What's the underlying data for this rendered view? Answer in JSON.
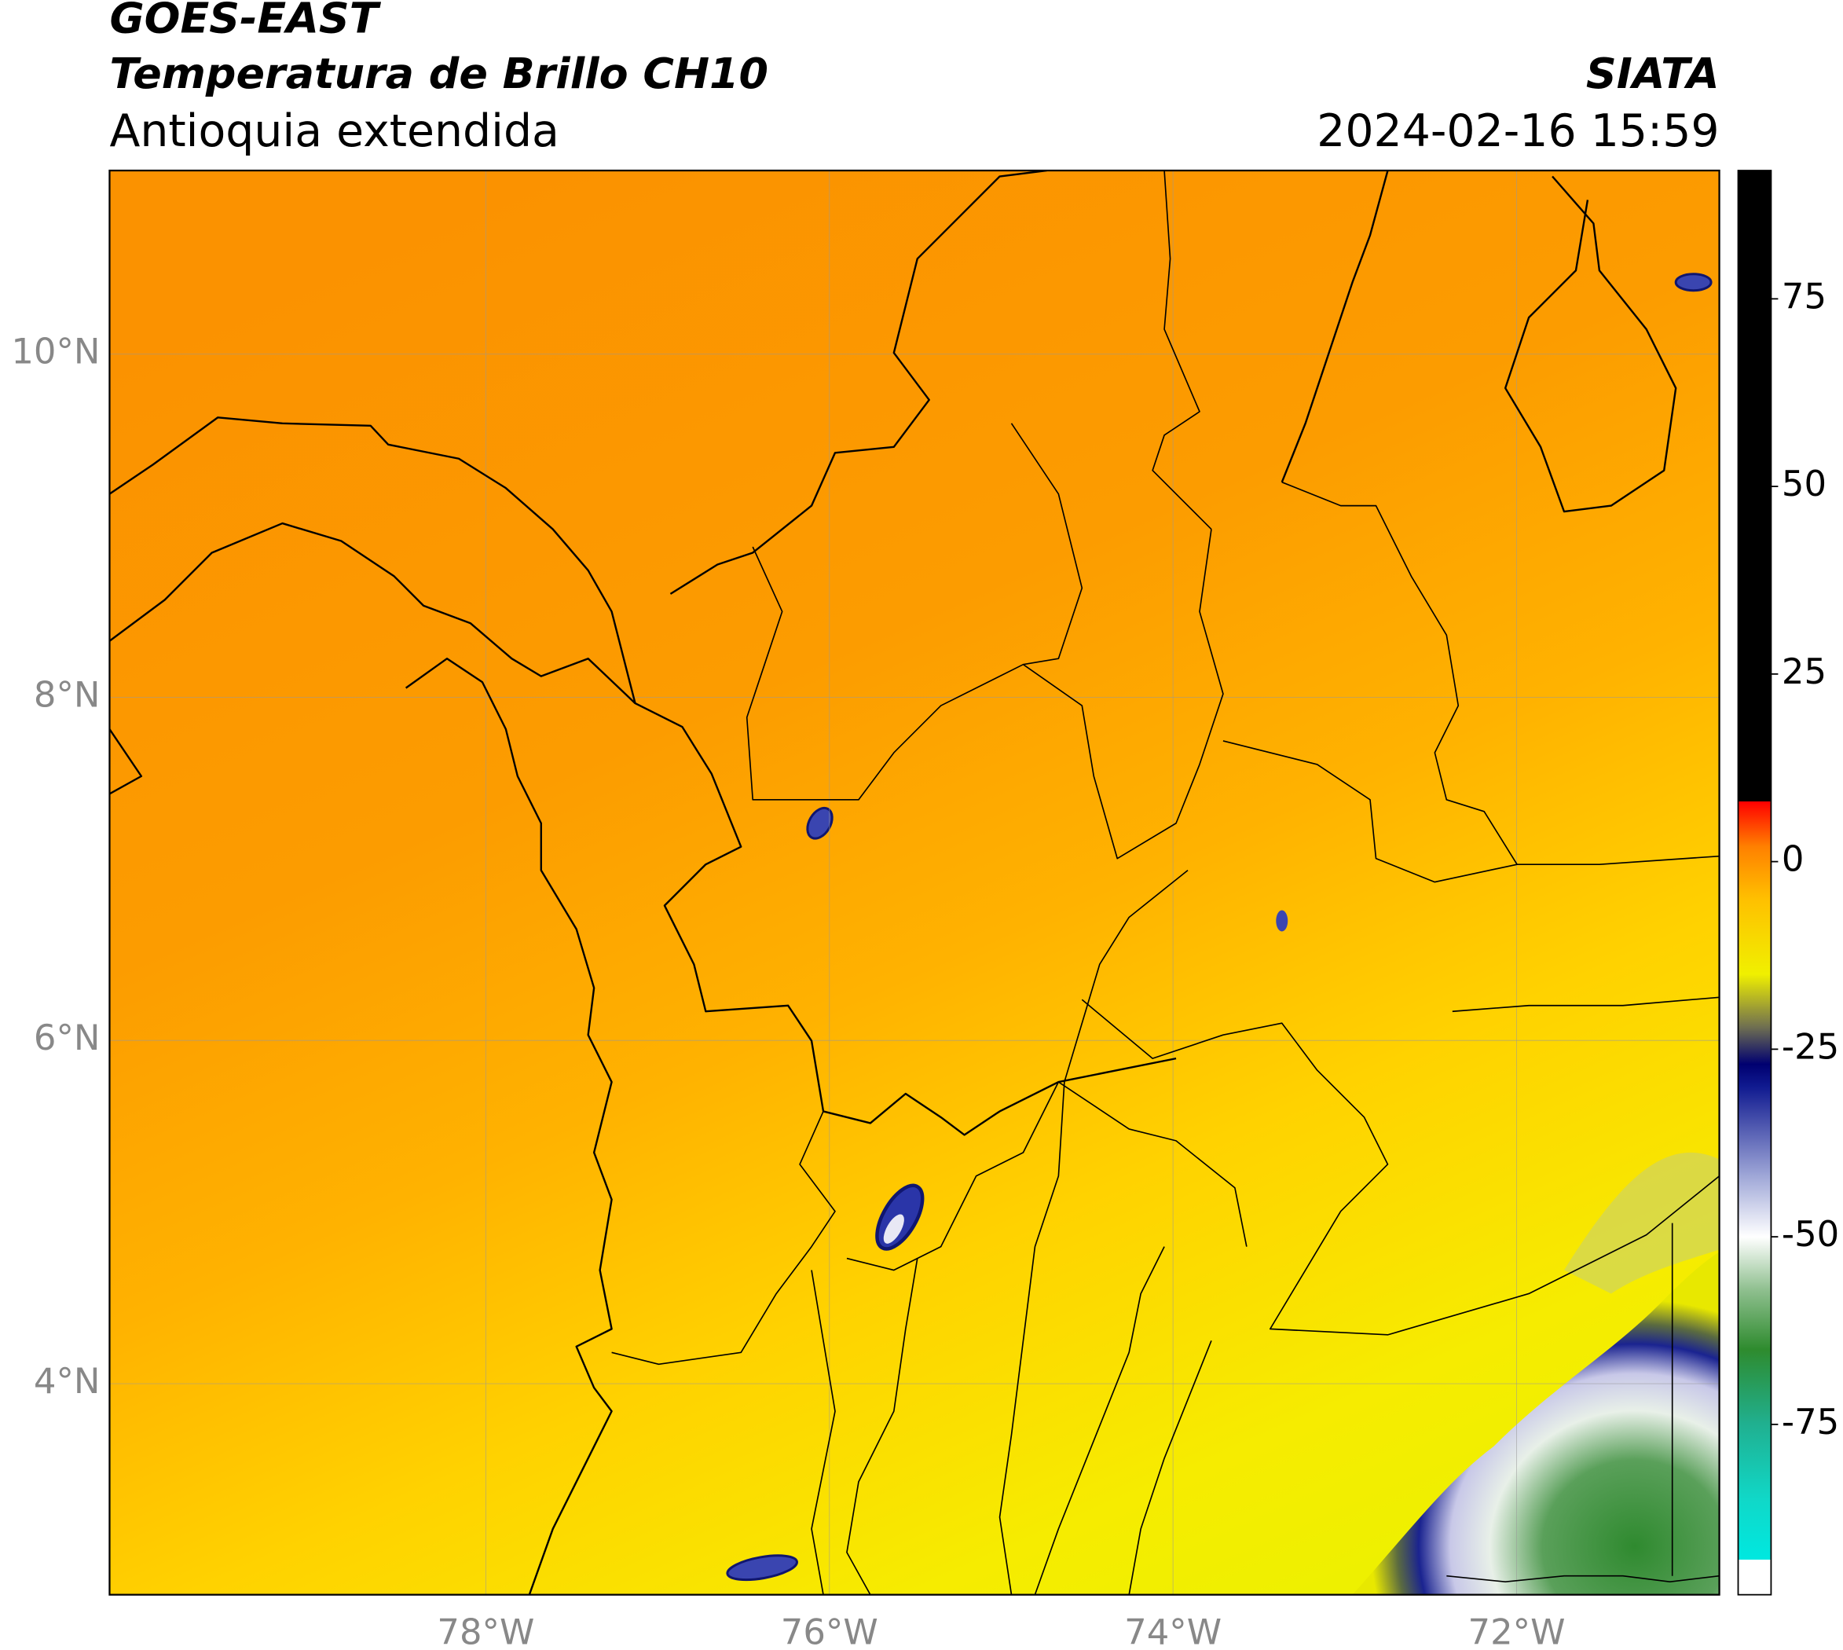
{
  "header": {
    "satellite": "GOES-EAST",
    "product": "Temperatura de Brillo CH10",
    "region": "Antioquia extendida",
    "source": "SIATA",
    "datetime": "2024-02-16 15:59"
  },
  "chart_data": {
    "type": "map",
    "xlim": [
      -80.19,
      -70.82
    ],
    "ylim": [
      2.77,
      11.07
    ],
    "xticks": [
      {
        "value": -78,
        "label": "78°W"
      },
      {
        "value": -76,
        "label": "76°W"
      },
      {
        "value": -74,
        "label": "74°W"
      },
      {
        "value": -72,
        "label": "72°W"
      }
    ],
    "yticks": [
      {
        "value": 4,
        "label": "4°N"
      },
      {
        "value": 6,
        "label": "6°N"
      },
      {
        "value": 8,
        "label": "8°N"
      },
      {
        "value": 10,
        "label": "10°N"
      }
    ],
    "grid": true,
    "colorbar": {
      "lim": [
        -97.7,
        92.1
      ],
      "ticks": [
        -75,
        -50,
        -25,
        0,
        25,
        50,
        75
      ],
      "colormap": [
        [
          -97.7,
          "#ffffff"
        ],
        [
          -93,
          "#ffffff"
        ],
        [
          -93,
          "#00e8e0"
        ],
        [
          -85,
          "#10d8c8"
        ],
        [
          -75,
          "#20b090"
        ],
        [
          -65,
          "#2e8b2e"
        ],
        [
          -57,
          "#90c090"
        ],
        [
          -50,
          "#ffffff"
        ],
        [
          -42,
          "#a0a8d8"
        ],
        [
          -30,
          "#101a90"
        ],
        [
          -27,
          "#000070"
        ],
        [
          -22,
          "#707050"
        ],
        [
          -15,
          "#f0f000"
        ],
        [
          -5,
          "#ffc000"
        ],
        [
          2,
          "#ff8000"
        ],
        [
          8,
          "#ff0000"
        ],
        [
          8,
          "#000000"
        ],
        [
          92.1,
          "#000000"
        ]
      ]
    }
  }
}
